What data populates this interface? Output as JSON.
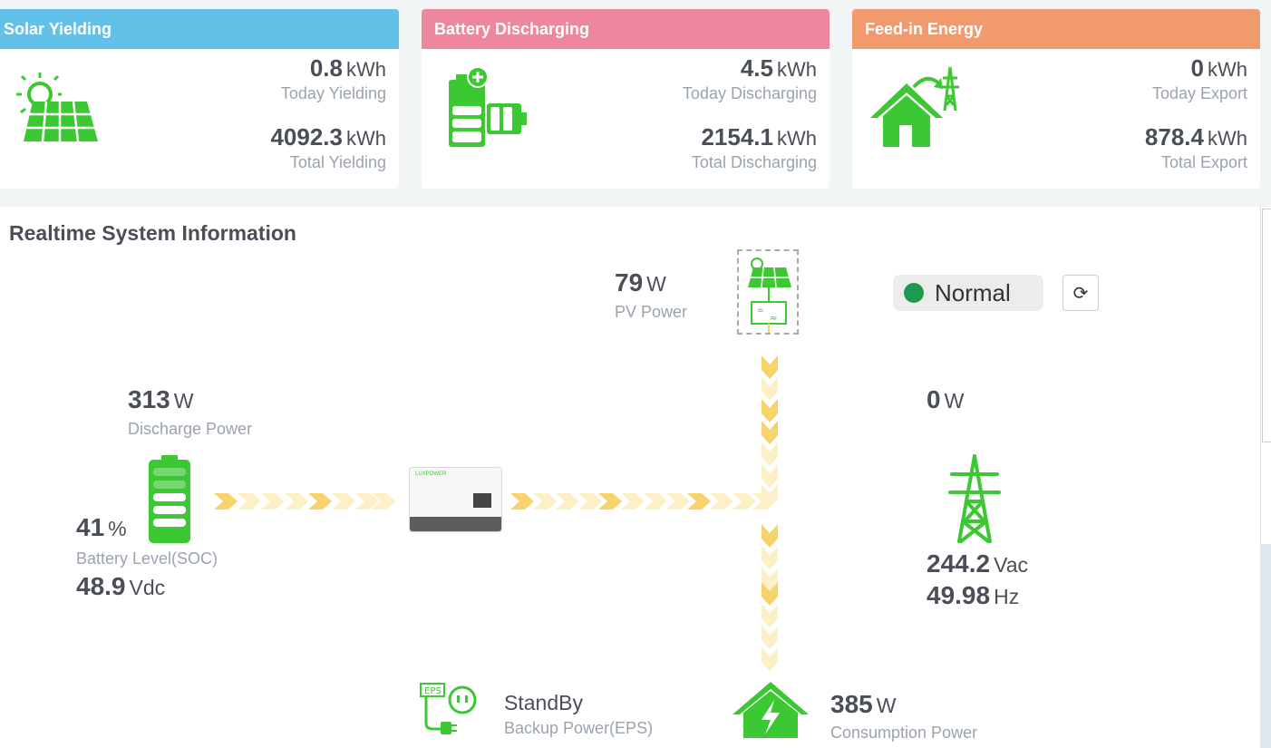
{
  "cards": [
    {
      "title": "Solar Yielding",
      "color": "#61c1e9",
      "today_value": "0.8",
      "today_unit": "kWh",
      "today_label": "Today Yielding",
      "total_value": "4092.3",
      "total_unit": "kWh",
      "total_label": "Total Yielding",
      "icon": "solar-panel-icon"
    },
    {
      "title": "Battery Discharging",
      "color": "#ef86a0",
      "today_value": "4.5",
      "today_unit": "kWh",
      "today_label": "Today Discharging",
      "total_value": "2154.1",
      "total_unit": "kWh",
      "total_label": "Total Discharging",
      "icon": "battery-discharge-icon"
    },
    {
      "title": "Feed-in Energy",
      "color": "#f09a6e",
      "today_value": "0",
      "today_unit": "kWh",
      "today_label": "Today Export",
      "total_value": "878.4",
      "total_unit": "kWh",
      "total_label": "Total Export",
      "icon": "house-grid-icon"
    }
  ],
  "realtime": {
    "title": "Realtime System Information",
    "pv": {
      "value": "79",
      "unit": "W",
      "label": "PV Power"
    },
    "status": {
      "text": "Normal",
      "color": "#1c9a4e"
    },
    "battery": {
      "power_value": "313",
      "power_unit": "W",
      "power_label": "Discharge Power",
      "soc_value": "41",
      "soc_unit": "%",
      "soc_label": "Battery Level(SOC)",
      "voltage_value": "48.9",
      "voltage_unit": "Vdc"
    },
    "grid": {
      "power_value": "0",
      "power_unit": "W",
      "voltage_value": "244.2",
      "voltage_unit": "Vac",
      "freq_value": "49.98",
      "freq_unit": "Hz"
    },
    "eps": {
      "status": "StandBy",
      "label": "Backup Power(EPS)",
      "badge": "EPS"
    },
    "consumption": {
      "value": "385",
      "unit": "W",
      "label": "Consumption Power"
    },
    "inverter": {
      "brand": "LUXPOWER"
    }
  },
  "colors": {
    "green": "#3cc832",
    "flow": "#f7d36b",
    "flow_light": "#fdf0c7"
  }
}
